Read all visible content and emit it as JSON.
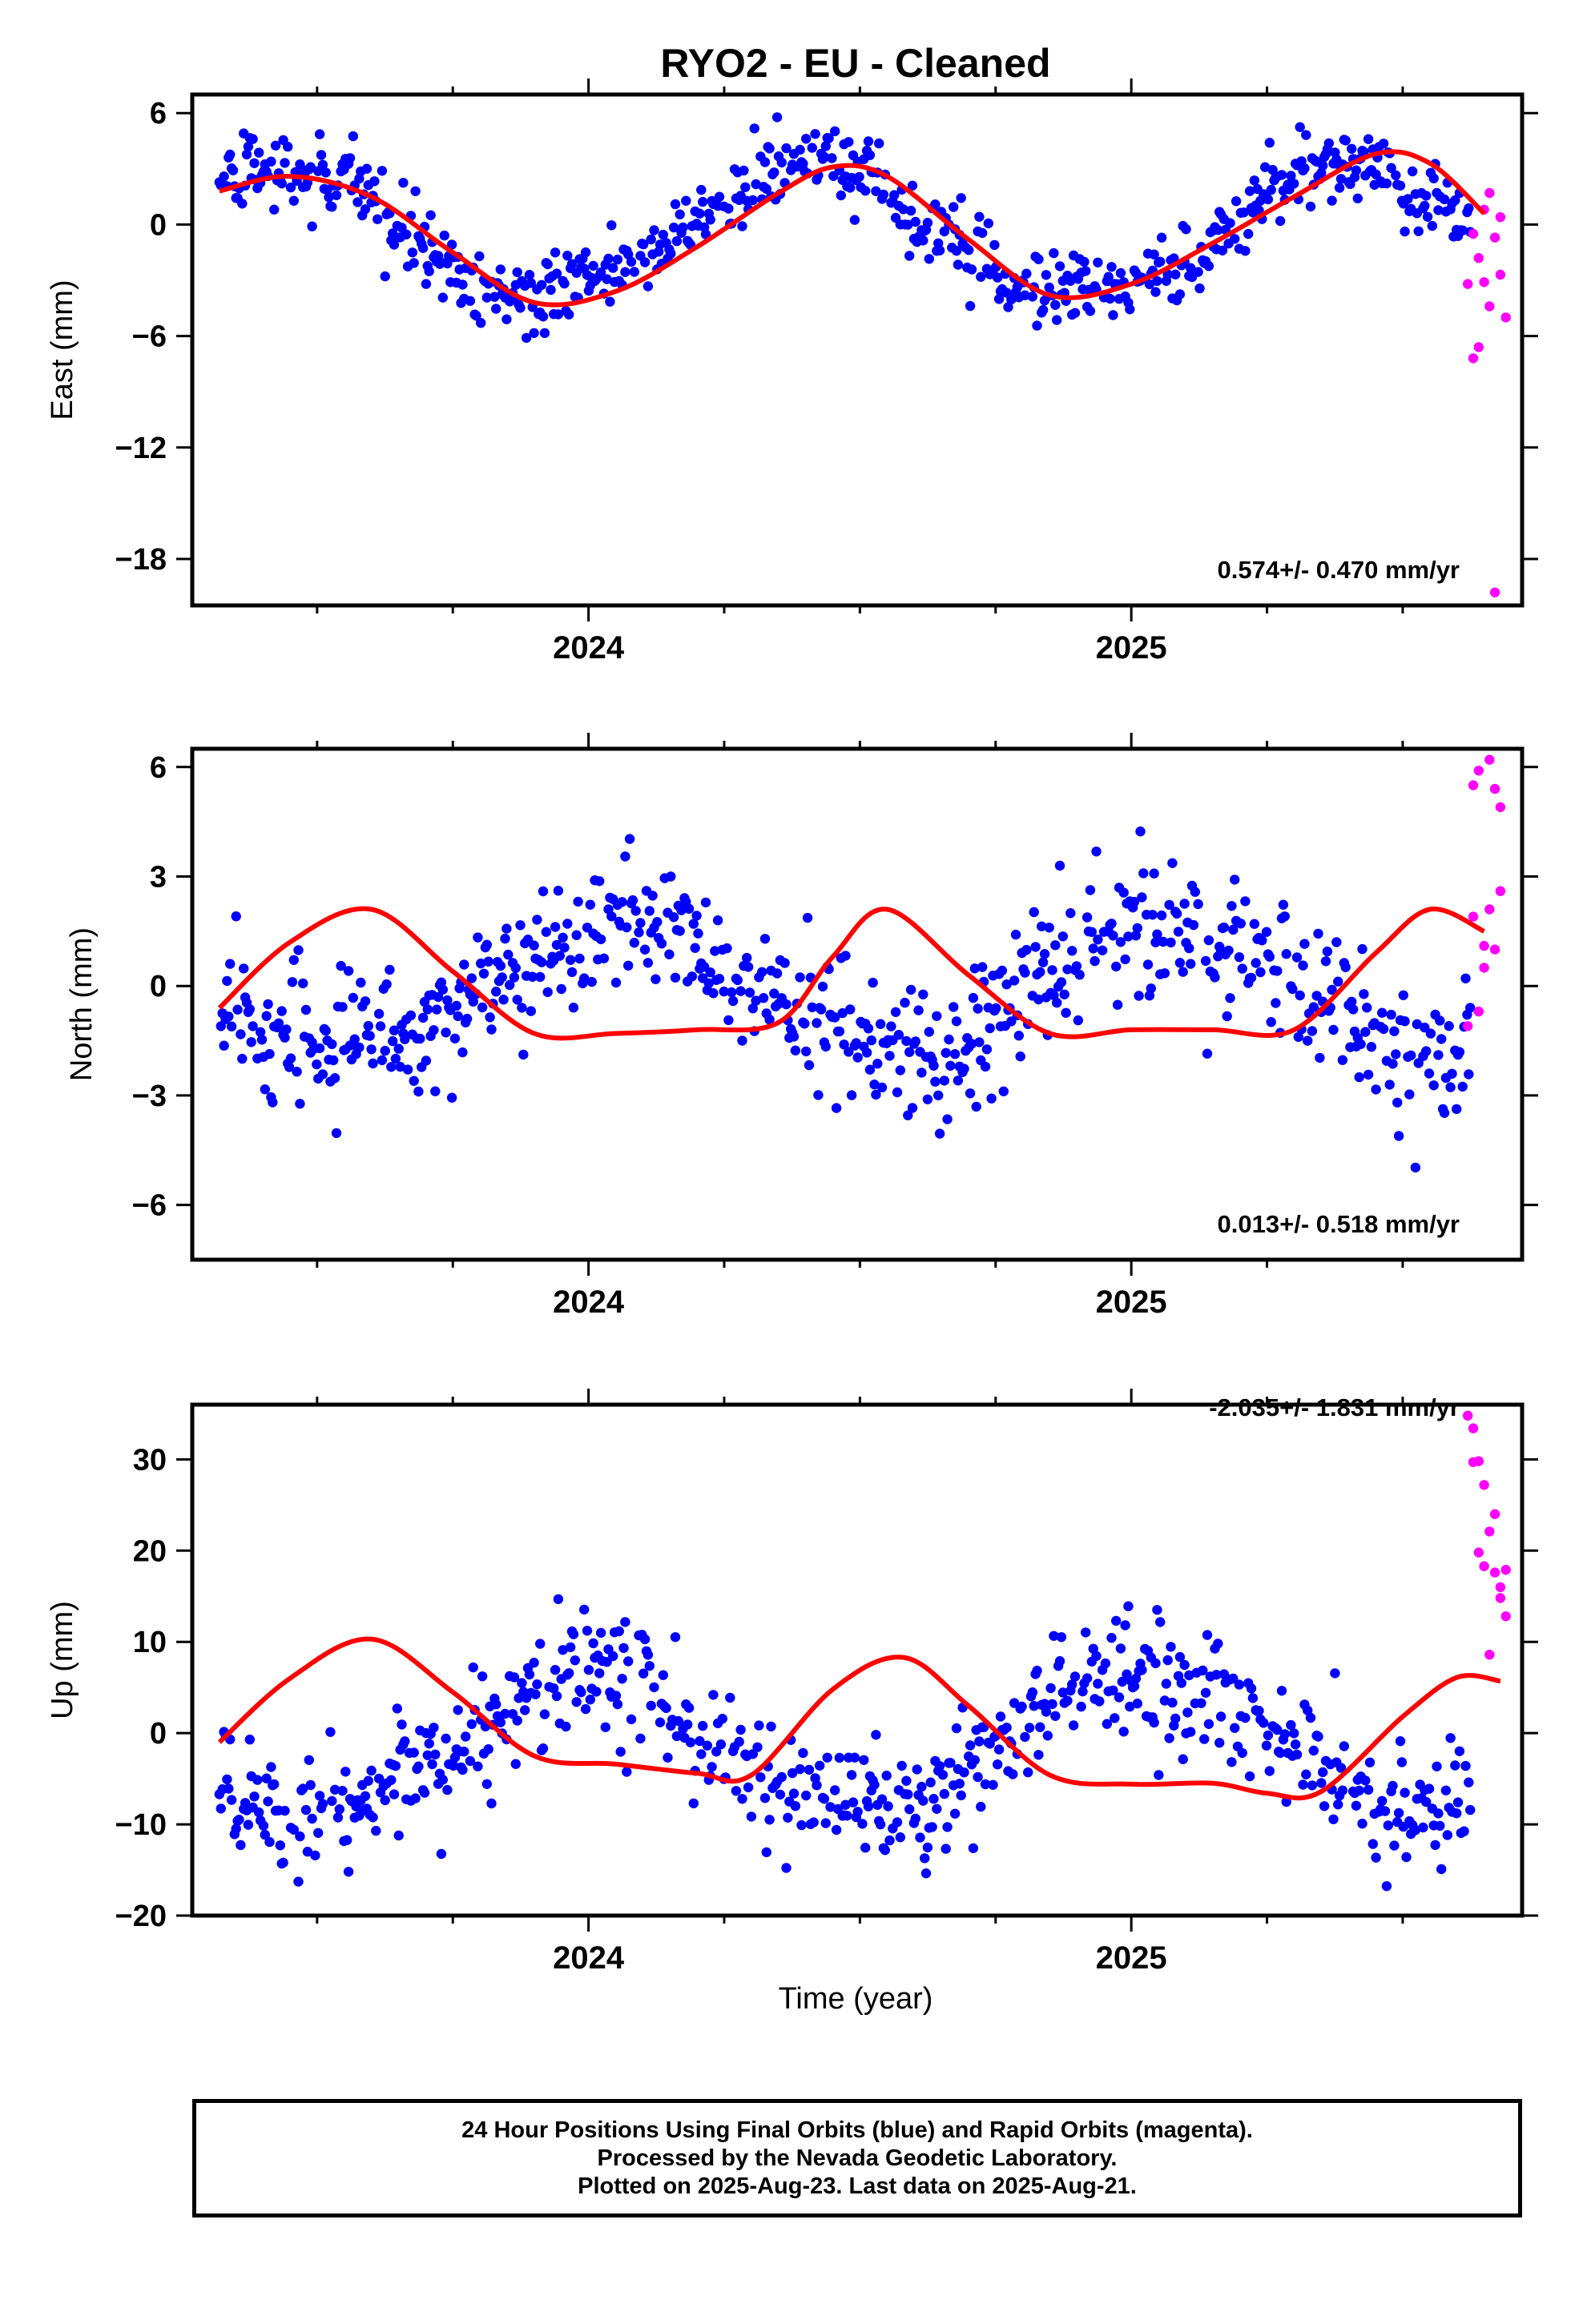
{
  "chart_data": {
    "title": "RYO2  - EU - Cleaned",
    "type": "scatter",
    "xlabel": "Time (year)",
    "xlim": [
      2023.27,
      2025.72
    ],
    "x_major_ticks": [
      2024,
      2025
    ],
    "x_minor_ticks": [
      2023.5,
      2023.75,
      2024.25,
      2024.5,
      2024.75,
      2025.25,
      2025.5
    ],
    "colors": {
      "final_orbits": "#0000ff",
      "rapid_orbits": "#ff00ff",
      "model_fit": "#ff0000"
    },
    "panels": [
      {
        "name": "east",
        "ylabel": "East (mm)",
        "ylim": [
          -20.5,
          7
        ],
        "yticks": [
          6,
          0,
          -6,
          -12,
          -18
        ],
        "rate_text": "0.574+/- 0.470 mm/yr",
        "trend": {
          "amplitude": 3.5,
          "phase": 0.0,
          "wobble": 0.35,
          "offset": -0.4,
          "noise": 1.1
        },
        "model_fit": {
          "x": [
            2023.32,
            2023.45,
            2023.6,
            2023.75,
            2023.9,
            2024.05,
            2024.2,
            2024.35,
            2024.45,
            2024.55,
            2024.7,
            2024.85,
            2025.0,
            2025.15,
            2025.3,
            2025.45,
            2025.55,
            2025.65
          ],
          "y": [
            1.8,
            2.6,
            1.5,
            -1.5,
            -4.2,
            -3.6,
            -1.2,
            1.7,
            3.1,
            2.6,
            -0.8,
            -3.8,
            -3.2,
            -1.0,
            1.5,
            3.8,
            3.3,
            0.6
          ]
        },
        "rapid_points": {
          "x": [
            2025.62,
            2025.63,
            2025.63,
            2025.64,
            2025.64,
            2025.65,
            2025.65,
            2025.66,
            2025.66,
            2025.67,
            2025.67,
            2025.68,
            2025.68,
            2025.69
          ],
          "y": [
            -3.2,
            -0.5,
            -7.2,
            -6.6,
            -1.8,
            0.8,
            -3.1,
            1.7,
            -4.4,
            -19.8,
            -0.7,
            -2.7,
            0.4,
            -5.0
          ]
        }
      },
      {
        "name": "north",
        "ylabel": "North (mm)",
        "ylim": [
          -7.5,
          6.5
        ],
        "yticks": [
          6,
          3,
          0,
          -3,
          -6
        ],
        "rate_text": "0.013+/- 0.518 mm/yr",
        "trend": {
          "amplitude": 1.7,
          "phase": 0.35,
          "wobble": 0.2,
          "offset": 0.0,
          "noise": 1.1
        },
        "model_fit": {
          "x": [
            2023.32,
            2023.45,
            2023.6,
            2023.75,
            2023.9,
            2024.05,
            2024.2,
            2024.35,
            2024.45,
            2024.55,
            2024.7,
            2024.85,
            2025.0,
            2025.15,
            2025.3,
            2025.45,
            2025.55,
            2025.65
          ],
          "y": [
            -0.6,
            1.2,
            2.1,
            0.4,
            -1.3,
            -1.3,
            -1.2,
            -1.0,
            0.8,
            2.1,
            0.3,
            -1.3,
            -1.2,
            -1.2,
            -1.2,
            0.9,
            2.1,
            1.5
          ]
        },
        "rapid_points": {
          "x": [
            2025.62,
            2025.63,
            2025.63,
            2025.64,
            2025.64,
            2025.65,
            2025.65,
            2025.66,
            2025.66,
            2025.67,
            2025.67,
            2025.68,
            2025.68
          ],
          "y": [
            -1.1,
            5.5,
            1.9,
            -0.7,
            5.9,
            0.5,
            1.1,
            6.2,
            2.1,
            5.4,
            1.0,
            4.9,
            2.6
          ]
        }
      },
      {
        "name": "up",
        "ylabel": "Up (mm)",
        "ylim": [
          -20,
          36
        ],
        "yticks": [
          30,
          20,
          10,
          0,
          -10,
          -20
        ],
        "rate_text": "-2.035+/- 1.831 mm/yr",
        "trend": {
          "amplitude": 7.5,
          "phase": 0.4,
          "wobble": 1.0,
          "offset": -1.0,
          "noise": 4.0
        },
        "model_fit": {
          "x": [
            2023.32,
            2023.45,
            2023.6,
            2023.75,
            2023.9,
            2024.05,
            2024.2,
            2024.3,
            2024.45,
            2024.58,
            2024.7,
            2024.85,
            2025.0,
            2025.15,
            2025.25,
            2025.35,
            2025.5,
            2025.6,
            2025.68
          ],
          "y": [
            -1.0,
            6.0,
            10.3,
            4.5,
            -2.5,
            -3.4,
            -4.4,
            -4.6,
            4.8,
            8.3,
            3.0,
            -4.6,
            -5.6,
            -5.5,
            -6.6,
            -6.4,
            1.8,
            6.1,
            5.7
          ]
        },
        "rapid_points": {
          "x": [
            2025.62,
            2025.63,
            2025.63,
            2025.64,
            2025.64,
            2025.65,
            2025.65,
            2025.66,
            2025.66,
            2025.67,
            2025.67,
            2025.68,
            2025.68,
            2025.69,
            2025.69
          ],
          "y": [
            34.8,
            29.7,
            33.4,
            19.8,
            29.8,
            27.2,
            18.3,
            8.6,
            22.1,
            24.0,
            17.6,
            14.8,
            16.0,
            12.8,
            17.9
          ]
        }
      }
    ]
  },
  "footer": {
    "line1": "24 Hour Positions Using Final Orbits (blue) and Rapid Orbits (magenta).",
    "line2": "Processed by the Nevada Geodetic Laboratory.",
    "line3": "Plotted on 2025-Aug-23. Last data on 2025-Aug-21."
  }
}
